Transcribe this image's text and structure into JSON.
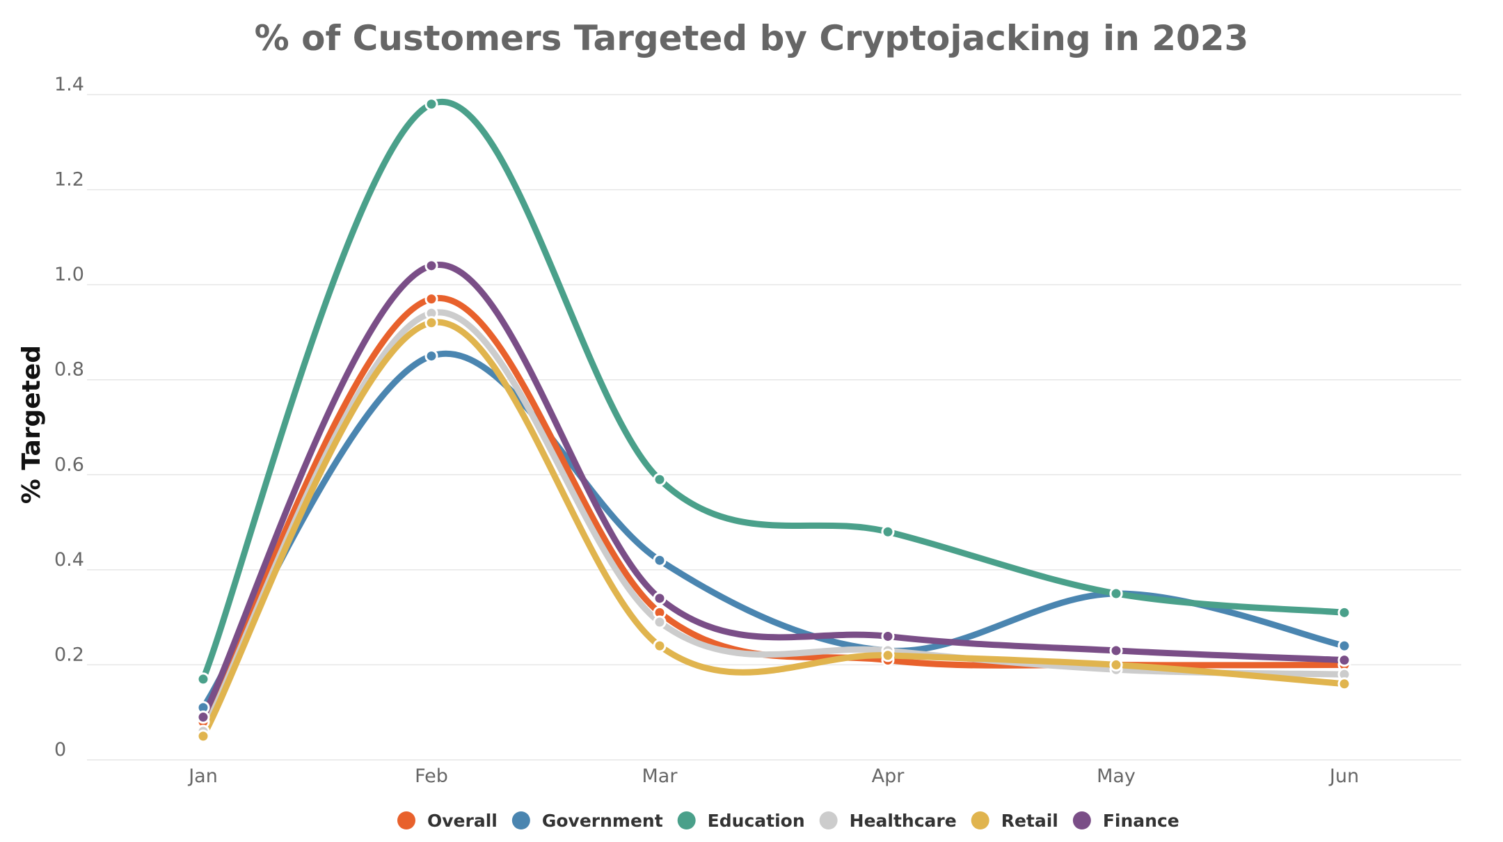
{
  "chart_data": {
    "type": "line",
    "title": "% of Customers Targeted by Cryptojacking in 2023",
    "xlabel": "",
    "ylabel": "% Targeted",
    "categories": [
      "Jan",
      "Feb",
      "Mar",
      "Apr",
      "May",
      "Jun"
    ],
    "ylim": [
      0,
      1.4
    ],
    "yticks": [
      "0",
      "0.2",
      "0.4",
      "0.6",
      "0.8",
      "1.0",
      "1.2",
      "1.4"
    ],
    "ytick_values": [
      0,
      0.2,
      0.4,
      0.6,
      0.8,
      1.0,
      1.2,
      1.4
    ],
    "grid": true,
    "smooth": true,
    "legend_position": "bottom",
    "series": [
      {
        "name": "Overall",
        "color": "#E8612C",
        "values": [
          0.08,
          0.97,
          0.31,
          0.21,
          0.2,
          0.2
        ]
      },
      {
        "name": "Government",
        "color": "#4A85B0",
        "values": [
          0.11,
          0.85,
          0.42,
          0.23,
          0.35,
          0.24
        ]
      },
      {
        "name": "Education",
        "color": "#4AA08A",
        "values": [
          0.17,
          1.38,
          0.59,
          0.48,
          0.35,
          0.31
        ]
      },
      {
        "name": "Healthcare",
        "color": "#CCCCCC",
        "values": [
          0.06,
          0.94,
          0.29,
          0.23,
          0.19,
          0.18
        ]
      },
      {
        "name": "Retail",
        "color": "#E0B44E",
        "values": [
          0.05,
          0.92,
          0.24,
          0.22,
          0.2,
          0.16
        ]
      },
      {
        "name": "Finance",
        "color": "#7A4E87",
        "values": [
          0.09,
          1.04,
          0.34,
          0.26,
          0.23,
          0.21
        ]
      }
    ]
  }
}
